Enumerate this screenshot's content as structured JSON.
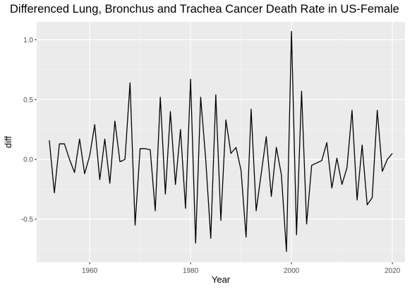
{
  "chart_data": {
    "type": "line",
    "title": "Differenced Lung, Bronchus and Trachea Cancer Death Rate in US-Female",
    "xlabel": "Year",
    "ylabel": "diff",
    "xlim": [
      1949.5,
      2022.5
    ],
    "ylim": [
      -0.86,
      1.15
    ],
    "x_ticks": [
      1960,
      1980,
      2000,
      2020
    ],
    "y_ticks": [
      -0.5,
      0.0,
      0.5,
      1.0
    ],
    "x_tick_labels": [
      "1960",
      "1980",
      "2000",
      "2020"
    ],
    "y_tick_labels": [
      "-0.5",
      "0.0",
      "0.5",
      "1.0"
    ],
    "grid": true,
    "colors": {
      "panel": "#ebebeb",
      "grid_major": "#ffffff",
      "grid_minor": "#f5f5f5",
      "line": "#000000",
      "tick_text": "#4d4d4d"
    },
    "series": [
      {
        "x": [
          1952,
          1953,
          1954,
          1955,
          1956,
          1957,
          1958,
          1959,
          1960,
          1961,
          1962,
          1963,
          1964,
          1965,
          1966,
          1967,
          1968,
          1969,
          1970,
          1971,
          1972,
          1973,
          1974,
          1975,
          1976,
          1977,
          1978,
          1979,
          1980,
          1981,
          1982,
          1983,
          1984,
          1985,
          1986,
          1987,
          1988,
          1989,
          1990,
          1991,
          1992,
          1993,
          1994,
          1995,
          1996,
          1997,
          1998,
          1999,
          2000,
          2001,
          2002,
          2003,
          2004,
          2005,
          2006,
          2007,
          2008,
          2009,
          2010,
          2011,
          2012,
          2013,
          2014,
          2015,
          2016,
          2017,
          2018,
          2019,
          2020
        ],
        "values": [
          0.16,
          -0.28,
          0.13,
          0.13,
          0.0,
          -0.11,
          0.17,
          -0.12,
          0.03,
          0.29,
          -0.17,
          0.17,
          -0.2,
          0.32,
          -0.02,
          0.0,
          0.64,
          -0.55,
          0.09,
          0.09,
          0.08,
          -0.43,
          0.52,
          -0.29,
          0.4,
          -0.21,
          0.25,
          -0.41,
          0.67,
          -0.7,
          0.52,
          0.0,
          -0.66,
          0.54,
          -0.51,
          0.33,
          0.05,
          0.1,
          -0.09,
          -0.65,
          0.42,
          -0.43,
          -0.12,
          0.19,
          -0.31,
          0.1,
          -0.13,
          -0.77,
          1.07,
          -0.63,
          0.57,
          -0.54,
          -0.05,
          -0.03,
          -0.01,
          0.14,
          -0.24,
          0.01,
          -0.21,
          -0.07,
          0.41,
          -0.34,
          0.12,
          -0.38,
          -0.32,
          0.41,
          -0.1,
          0.0,
          0.05
        ]
      }
    ]
  }
}
